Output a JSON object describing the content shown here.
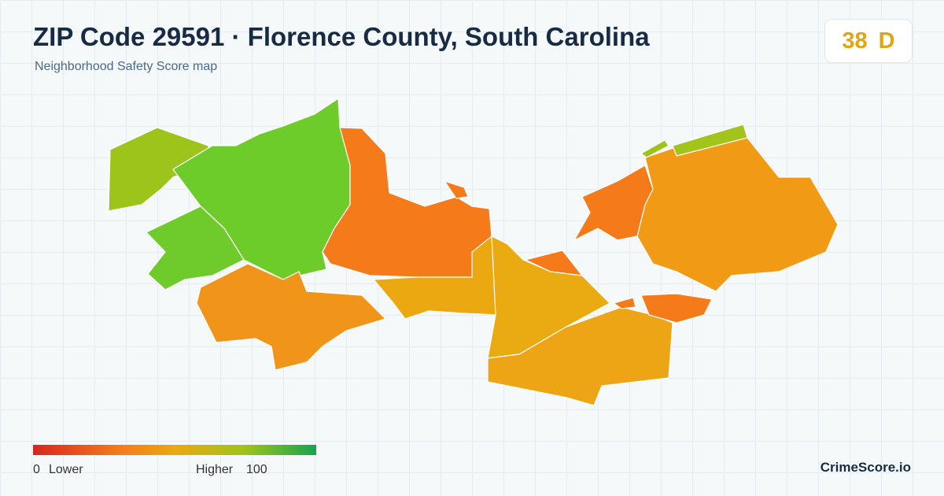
{
  "header": {
    "title": "ZIP Code 29591 · Florence County, South Carolina",
    "subtitle": "Neighborhood Safety Score map"
  },
  "score": {
    "value": "38",
    "grade": "D"
  },
  "legend": {
    "min": "0",
    "min_label": "Lower",
    "max_label": "Higher",
    "max": "100"
  },
  "brand": "CrimeScore.io"
}
